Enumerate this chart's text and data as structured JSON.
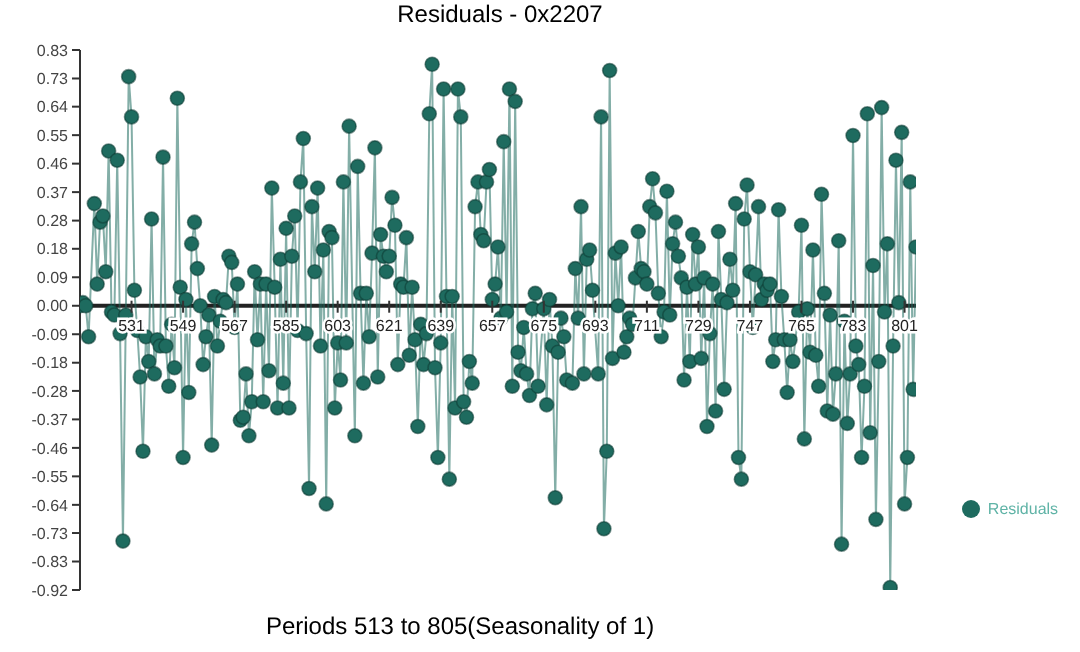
{
  "chart_data": {
    "type": "line",
    "title": "Residuals - 0x2207",
    "xlabel": "Periods 513 to 805(Seasonality of 1)",
    "xlim": [
      513,
      805
    ],
    "xticks": [
      531,
      549,
      567,
      585,
      603,
      621,
      639,
      657,
      675,
      693,
      711,
      729,
      747,
      765,
      783,
      801
    ],
    "ylim": [
      -0.918,
      0.826
    ],
    "yticks": [
      {
        "value": 0.826,
        "label": "0.83"
      },
      {
        "value": 0.734,
        "label": "0.73"
      },
      {
        "value": 0.643,
        "label": "0.64"
      },
      {
        "value": 0.551,
        "label": "0.55"
      },
      {
        "value": 0.459,
        "label": "0.46"
      },
      {
        "value": 0.367,
        "label": "0.37"
      },
      {
        "value": 0.275,
        "label": "0.28"
      },
      {
        "value": 0.184,
        "label": "0.18"
      },
      {
        "value": 0.092,
        "label": "0.09"
      },
      {
        "value": 0,
        "label": "0.00"
      },
      {
        "value": -0.092,
        "label": "-0.09"
      },
      {
        "value": -0.184,
        "label": "-0.18"
      },
      {
        "value": -0.275,
        "label": "-0.28"
      },
      {
        "value": -0.367,
        "label": "-0.37"
      },
      {
        "value": -0.459,
        "label": "-0.46"
      },
      {
        "value": -0.551,
        "label": "-0.55"
      },
      {
        "value": -0.643,
        "label": "-0.64"
      },
      {
        "value": -0.734,
        "label": "-0.73"
      },
      {
        "value": -0.826,
        "label": "-0.83"
      },
      {
        "value": -0.918,
        "label": "-0.92"
      }
    ],
    "grid": false,
    "legend": "right",
    "marker": "circle",
    "line_style": "solid",
    "series": [
      {
        "name": "Residuals",
        "color": "#1e6b5f",
        "x": [
          513,
          514,
          515,
          516,
          518,
          519,
          520,
          521,
          522,
          523,
          524,
          525,
          526,
          527,
          528,
          529,
          530,
          531,
          532,
          533,
          534,
          535,
          536,
          537,
          538,
          539,
          540,
          541,
          542,
          543,
          544,
          545,
          546,
          547,
          548,
          549,
          550,
          551,
          552,
          553,
          554,
          555,
          556,
          557,
          558,
          559,
          560,
          561,
          562,
          563,
          564,
          565,
          566,
          567,
          568,
          569,
          570,
          571,
          572,
          573,
          574,
          575,
          576,
          577,
          578,
          579,
          580,
          581,
          582,
          583,
          584,
          585,
          586,
          587,
          588,
          589,
          590,
          591,
          592,
          593,
          594,
          595,
          596,
          597,
          598,
          599,
          600,
          601,
          602,
          603,
          604,
          605,
          606,
          607,
          609,
          610,
          611,
          612,
          613,
          614,
          615,
          616,
          617,
          618,
          619,
          620,
          621,
          622,
          623,
          624,
          625,
          626,
          627,
          628,
          629,
          630,
          631,
          632,
          633,
          634,
          635,
          636,
          637,
          638,
          639,
          640,
          641,
          642,
          643,
          644,
          645,
          646,
          647,
          648,
          649,
          650,
          651,
          652,
          653,
          654,
          655,
          656,
          657,
          658,
          659,
          660,
          661,
          662,
          663,
          664,
          665,
          666,
          667,
          668,
          669,
          670,
          671,
          672,
          673,
          675,
          676,
          677,
          678,
          679,
          680,
          681,
          682,
          683,
          685,
          686,
          687,
          688,
          689,
          690,
          691,
          692,
          694,
          695,
          696,
          697,
          698,
          699,
          700,
          701,
          702,
          703,
          704,
          705,
          706,
          707,
          708,
          709,
          710,
          711,
          712,
          713,
          714,
          715,
          716,
          717,
          718,
          719,
          720,
          721,
          722,
          723,
          724,
          725,
          726,
          727,
          728,
          729,
          730,
          731,
          732,
          733,
          734,
          735,
          736,
          737,
          738,
          739,
          740,
          741,
          742,
          743,
          744,
          745,
          746,
          747,
          748,
          749,
          750,
          751,
          752,
          753,
          754,
          755,
          756,
          757,
          758,
          759,
          760,
          761,
          762,
          764,
          765,
          766,
          767,
          768,
          769,
          770,
          771,
          772,
          773,
          774,
          775,
          776,
          777,
          778,
          779,
          780,
          781,
          782,
          783,
          784,
          785,
          786,
          787,
          788,
          789,
          790,
          791,
          792,
          793,
          794,
          795,
          796,
          797,
          798,
          799,
          800,
          801,
          802,
          803,
          804,
          805
        ],
        "values": [
          0.0,
          0.01,
          0.0,
          -0.1,
          0.33,
          0.07,
          0.27,
          0.29,
          0.11,
          0.5,
          -0.02,
          -0.03,
          0.47,
          -0.09,
          -0.76,
          -0.03,
          0.74,
          0.61,
          0.05,
          -0.08,
          -0.23,
          -0.47,
          -0.1,
          -0.18,
          0.28,
          -0.22,
          -0.11,
          -0.13,
          0.48,
          -0.13,
          -0.26,
          -0.06,
          -0.2,
          0.67,
          0.06,
          -0.49,
          0.02,
          -0.28,
          0.2,
          0.27,
          0.12,
          0.0,
          -0.19,
          -0.1,
          -0.03,
          -0.45,
          0.03,
          -0.13,
          -0.05,
          0.02,
          0.01,
          0.16,
          0.14,
          -0.07,
          0.07,
          -0.37,
          -0.36,
          -0.22,
          -0.42,
          -0.31,
          0.11,
          -0.11,
          0.07,
          -0.31,
          0.07,
          -0.21,
          0.38,
          0.06,
          -0.33,
          0.15,
          -0.25,
          0.25,
          -0.33,
          0.16,
          0.29,
          -0.08,
          0.4,
          0.54,
          -0.09,
          -0.59,
          0.32,
          0.11,
          0.38,
          -0.13,
          0.18,
          -0.64,
          0.24,
          0.22,
          -0.33,
          -0.12,
          -0.24,
          0.4,
          -0.12,
          0.58,
          -0.42,
          0.45,
          0.04,
          -0.25,
          0.04,
          -0.1,
          0.17,
          0.51,
          -0.23,
          0.23,
          0.16,
          0.11,
          0.16,
          0.35,
          0.26,
          -0.19,
          0.07,
          0.06,
          0.22,
          -0.16,
          0.06,
          -0.11,
          -0.39,
          -0.06,
          -0.19,
          -0.09,
          0.62,
          0.78,
          -0.2,
          -0.49,
          -0.12,
          0.7,
          0.03,
          -0.56,
          0.03,
          -0.33,
          0.7,
          0.61,
          -0.31,
          -0.36,
          -0.18,
          -0.25,
          0.32,
          0.4,
          0.23,
          0.21,
          0.4,
          0.44,
          0.02,
          0.07,
          0.19,
          -0.04,
          0.53,
          -0.02,
          0.7,
          -0.26,
          0.66,
          -0.15,
          -0.21,
          -0.07,
          -0.22,
          -0.29,
          -0.01,
          0.04,
          -0.26,
          -0.01,
          -0.32,
          0.02,
          -0.13,
          -0.62,
          -0.15,
          -0.04,
          -0.1,
          -0.24,
          -0.25,
          0.12,
          -0.04,
          0.32,
          -0.22,
          0.15,
          0.18,
          0.05,
          -0.22,
          0.61,
          -0.72,
          -0.47,
          0.76,
          -0.17,
          0.17,
          0.0,
          0.19,
          -0.15,
          -0.1,
          -0.04,
          -0.06,
          0.09,
          0.24,
          0.12,
          0.11,
          0.07,
          0.32,
          0.41,
          0.3,
          0.04,
          -0.1,
          -0.02,
          0.37,
          -0.03,
          0.2,
          0.27,
          0.16,
          0.09,
          -0.24,
          0.06,
          -0.18,
          0.23,
          0.07,
          0.19,
          -0.17,
          0.09,
          -0.39,
          -0.09,
          0.07,
          -0.34,
          0.24,
          0.02,
          -0.27,
          0.01,
          0.15,
          0.05,
          0.33,
          -0.49,
          -0.56,
          0.28,
          0.39,
          0.11,
          -0.07,
          0.1,
          0.32,
          0.02,
          0.07,
          0.05,
          0.07,
          -0.18,
          -0.11,
          0.31,
          0.03,
          -0.11,
          -0.28,
          -0.11,
          -0.18,
          -0.02,
          0.26,
          -0.43,
          -0.01,
          -0.15,
          0.18,
          -0.16,
          -0.26,
          0.36,
          0.04,
          -0.34,
          -0.03,
          -0.35,
          -0.22,
          0.21,
          -0.77,
          -0.05,
          -0.38,
          -0.22,
          0.55,
          -0.13,
          -0.19,
          -0.49,
          -0.26,
          0.62,
          -0.41,
          0.13,
          -0.69,
          -0.18,
          0.64,
          -0.02,
          0.2,
          -0.91,
          -0.13,
          0.47,
          0.01,
          0.56,
          -0.64,
          -0.49,
          0.4,
          -0.27,
          0.19
        ]
      }
    ]
  }
}
